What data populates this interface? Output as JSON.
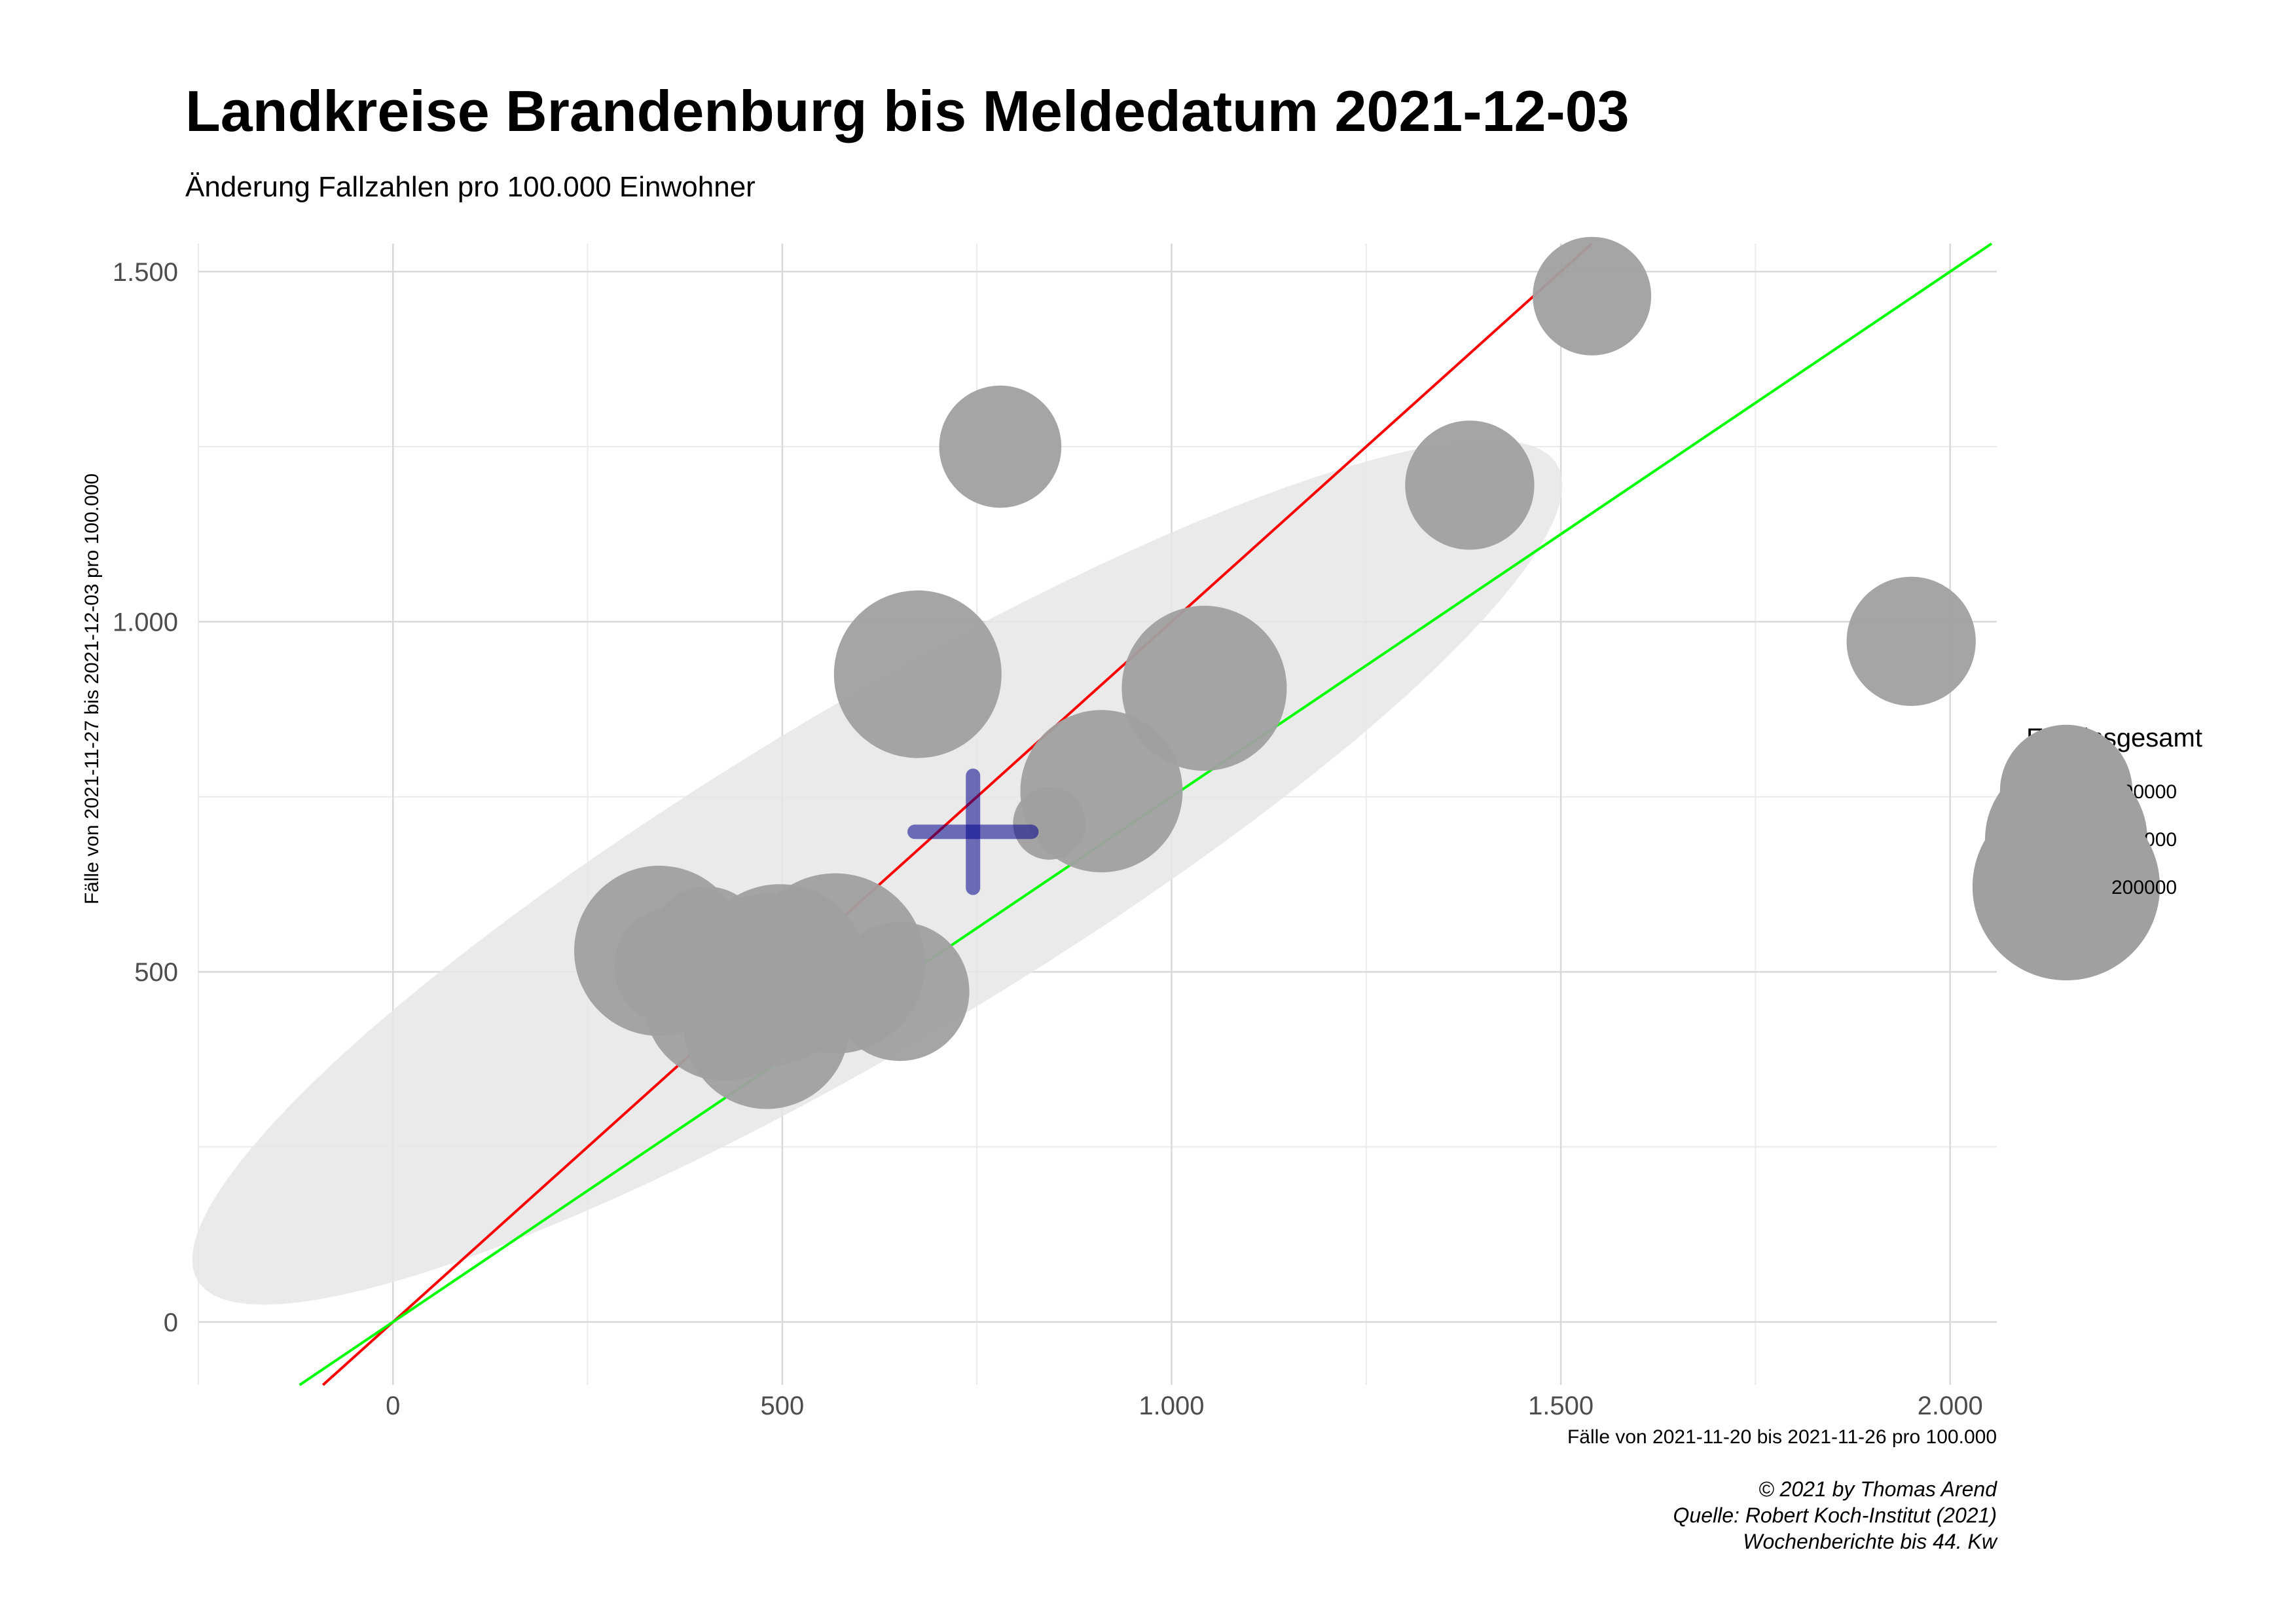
{
  "chart_data": {
    "type": "scatter",
    "title": "Landkreise Brandenburg bis Meldedatum 2021-12-03",
    "subtitle": "Änderung Fallzahlen pro 100.000 Einwohner",
    "xlabel": "Fälle von 2021-11-20 bis 2021-11-26 pro 100.000",
    "ylabel": "Fälle von 2021-11-27 bis 2021-12-03 pro 100.000",
    "xlim": [
      -250,
      2060
    ],
    "ylim": [
      -90,
      1540
    ],
    "x_ticks": [
      0,
      500,
      1000,
      1500,
      2000
    ],
    "x_tick_labels": [
      "0",
      "500",
      "1.000",
      "1.500",
      "2.000"
    ],
    "y_ticks": [
      0,
      500,
      1000,
      1500
    ],
    "y_tick_labels": [
      "0",
      "500",
      "1.000",
      "1.500"
    ],
    "grid": true,
    "points": [
      {
        "x": 1540,
        "y": 1465,
        "ew": 80000
      },
      {
        "x": 780,
        "y": 1250,
        "ew": 85000
      },
      {
        "x": 1383,
        "y": 1195,
        "ew": 95000
      },
      {
        "x": 1950,
        "y": 972,
        "ew": 95000
      },
      {
        "x": 674,
        "y": 925,
        "ew": 160000
      },
      {
        "x": 1042,
        "y": 905,
        "ew": 155000
      },
      {
        "x": 910,
        "y": 758,
        "ew": 150000
      },
      {
        "x": 843,
        "y": 712,
        "ew": 30000
      },
      {
        "x": 342,
        "y": 530,
        "ew": 165000
      },
      {
        "x": 360,
        "y": 508,
        "ew": 80000
      },
      {
        "x": 403,
        "y": 540,
        "ew": 75000
      },
      {
        "x": 568,
        "y": 512,
        "ew": 185000
      },
      {
        "x": 497,
        "y": 500,
        "ew": 175000
      },
      {
        "x": 480,
        "y": 488,
        "ew": 170000
      },
      {
        "x": 651,
        "y": 472,
        "ew": 110000
      },
      {
        "x": 426,
        "y": 460,
        "ew": 150000
      },
      {
        "x": 480,
        "y": 422,
        "ew": 155000
      }
    ],
    "mean_marker": {
      "x": 745,
      "y": 700,
      "sd_x": 75,
      "sd_y": 80,
      "color": "#00008b"
    },
    "ellipse": {
      "cx": 622,
      "cy": 642,
      "semi_major": 1050,
      "semi_minor": 230,
      "angle_deg": 34,
      "fill": "#e6e6e6"
    },
    "lines": [
      {
        "slope": 1.0,
        "intercept": 0,
        "color": "#ff0000"
      },
      {
        "slope": 0.75,
        "intercept": 0,
        "color": "#00ff00"
      }
    ],
    "point_color": "#a0a0a0",
    "legend": {
      "title": "EW_insgesamt",
      "placement": "right",
      "entries": [
        {
          "label": "100000",
          "value": 100000
        },
        {
          "label": "150000",
          "value": 150000
        },
        {
          "label": "200000",
          "value": 200000
        }
      ]
    },
    "caption": [
      "© 2021 by Thomas Arend",
      "Quelle: Robert Koch-Institut (2021)",
      "Wochenberichte bis 44. Kw"
    ]
  }
}
